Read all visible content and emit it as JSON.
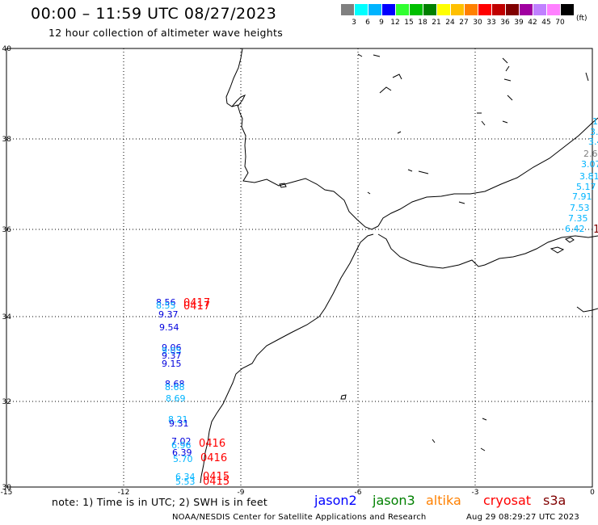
{
  "header": {
    "title": "00:00 – 11:59 UTC 08/27/2023",
    "subtitle": "12 hour collection of altimeter wave heights"
  },
  "scale": {
    "unit": "(ft)",
    "colors": [
      "#808080",
      "#00ffff",
      "#00b4ff",
      "#0000ff",
      "#30ff30",
      "#00c000",
      "#008000",
      "#ffff00",
      "#ffc000",
      "#ff8000",
      "#ff0000",
      "#c00000",
      "#800000",
      "#a000a0",
      "#c080ff",
      "#ff80ff",
      "#000000"
    ],
    "labels": [
      "3",
      "6",
      "9",
      "12",
      "15",
      "18",
      "21",
      "24",
      "27",
      "30",
      "33",
      "36",
      "39",
      "42",
      "45",
      "70"
    ]
  },
  "map": {
    "x_ticks": [
      "-15",
      "-12",
      "-9",
      "-6",
      "-3",
      "0"
    ],
    "y_ticks": [
      "40",
      "38",
      "36",
      "34",
      "32",
      "30"
    ]
  },
  "points": [
    {
      "text": "8.56",
      "color": "#0000dd"
    },
    {
      "text": "8.55",
      "color": "#00b4ff"
    },
    {
      "text": "0417",
      "color": "#ff0000"
    },
    {
      "text": "0417",
      "color": "#ff0000"
    },
    {
      "text": "9.37",
      "color": "#0000dd"
    },
    {
      "text": "9.54",
      "color": "#0000dd"
    },
    {
      "text": "9.06",
      "color": "#0000dd"
    },
    {
      "text": "9.05",
      "color": "#00b4ff"
    },
    {
      "text": "9.37",
      "color": "#0000dd"
    },
    {
      "text": "9.15",
      "color": "#0000dd"
    },
    {
      "text": "8.68",
      "color": "#0000dd"
    },
    {
      "text": "8.68",
      "color": "#00b4ff"
    },
    {
      "text": "8.69",
      "color": "#00b4ff"
    },
    {
      "text": "8.21",
      "color": "#00b4ff"
    },
    {
      "text": "9.31",
      "color": "#0000dd"
    },
    {
      "text": "7.02",
      "color": "#0000dd"
    },
    {
      "text": "6.96",
      "color": "#00b4ff"
    },
    {
      "text": "0416",
      "color": "#ff0000"
    },
    {
      "text": "6.39",
      "color": "#0000dd"
    },
    {
      "text": "5.70",
      "color": "#00b4ff"
    },
    {
      "text": "0416",
      "color": "#ff0000"
    },
    {
      "text": "6.34",
      "color": "#00b4ff"
    },
    {
      "text": "5.53",
      "color": "#00b4ff"
    },
    {
      "text": "0415",
      "color": "#ff0000"
    },
    {
      "text": "0415",
      "color": "#ff0000"
    },
    {
      "text": "1",
      "color": "#00b4ff"
    },
    {
      "text": "3.",
      "color": "#00b4ff"
    },
    {
      "text": "3.4",
      "color": "#00b4ff"
    },
    {
      "text": "2.6",
      "color": "#808080"
    },
    {
      "text": "3.07",
      "color": "#00b4ff"
    },
    {
      "text": "3.81",
      "color": "#00b4ff"
    },
    {
      "text": "5.17",
      "color": "#00b4ff"
    },
    {
      "text": "7.91",
      "color": "#00b4ff"
    },
    {
      "text": "7.53",
      "color": "#00b4ff"
    },
    {
      "text": "7.35",
      "color": "#00b4ff"
    },
    {
      "text": "6.42",
      "color": "#00b4ff"
    },
    {
      "text": "1",
      "color": "#800000"
    }
  ],
  "footer": {
    "note": "note: 1) Time is in UTC; 2) SWH is in feet",
    "sat_names": [
      {
        "name": "jason2",
        "color": "#0000ff"
      },
      {
        "name": "jason3",
        "color": "#008000"
      },
      {
        "name": "altika",
        "color": "#ff8000"
      },
      {
        "name": "cryosat",
        "color": "#ff0000"
      },
      {
        "name": "s3a",
        "color": "#800000"
      }
    ],
    "credit": "NOAA/NESDIS Center for Satellite Applications and Research",
    "timestamp": "Aug 29 08:29:27 UTC 2023"
  }
}
